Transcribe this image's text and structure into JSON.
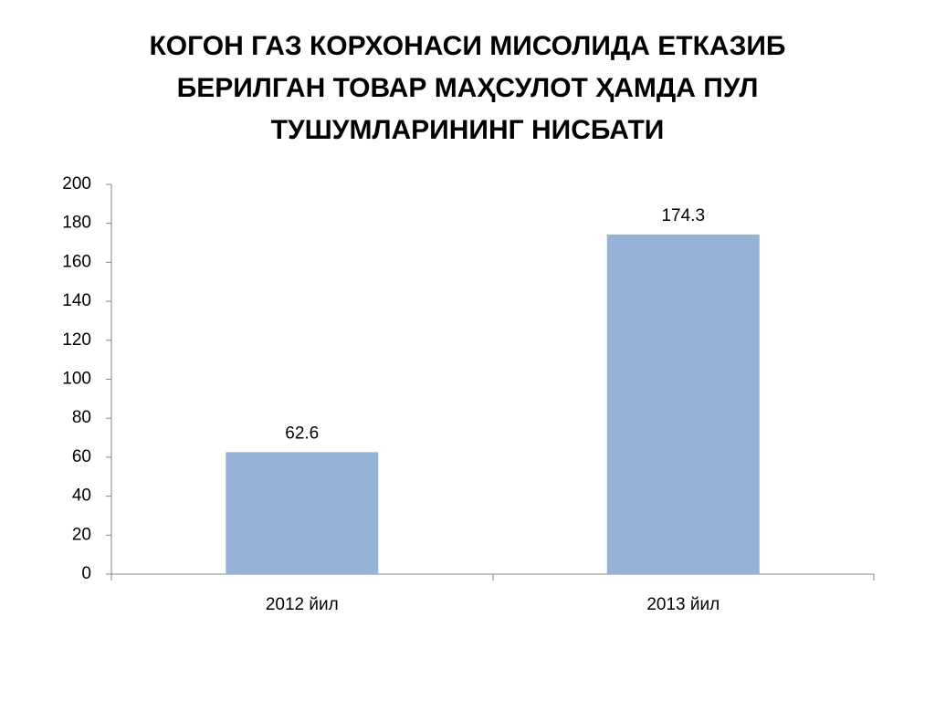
{
  "chart_data": {
    "type": "bar",
    "title": "КОГОН ГАЗ КОРХОНАСИ МИСОЛИДА ЕТКАЗИБ БЕРИЛГАН ТОВАР МАҲСУЛОТ ҲАМДА ПУЛ ТУШУМЛАРИНИНГ НИСБАТИ",
    "categories": [
      "2012 йил",
      "2013 йил"
    ],
    "values": [
      62.6,
      174.3
    ],
    "color": "#95b3d7",
    "ylim": [
      0,
      200
    ],
    "yticks": [
      0,
      20,
      40,
      60,
      80,
      100,
      120,
      140,
      160,
      180,
      200
    ],
    "grid": false
  }
}
